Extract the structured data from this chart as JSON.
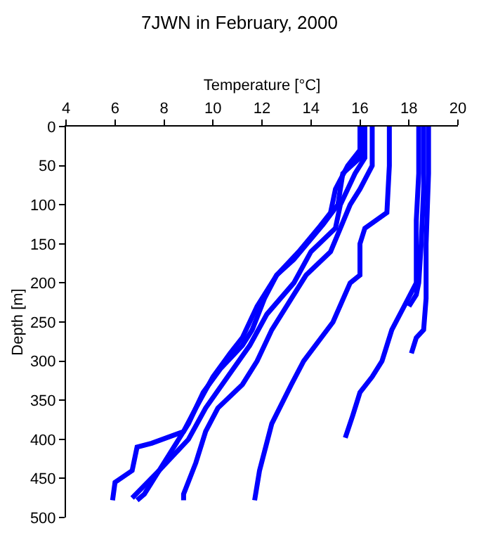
{
  "chart_data": {
    "type": "line",
    "title": "7JWN in February, 2000",
    "xlabel": "Temperature [°C]",
    "ylabel": "Depth [m]",
    "xlim": [
      4,
      20
    ],
    "xticks": [
      4,
      6,
      8,
      10,
      12,
      14,
      16,
      18,
      20
    ],
    "ylim": [
      500,
      0
    ],
    "yticks": [
      0,
      50,
      100,
      150,
      200,
      250,
      300,
      350,
      400,
      450,
      500
    ],
    "marker": "none",
    "line_style": "solid",
    "series": [
      {
        "color": "#0000ff",
        "x": [
          16.0,
          16.0,
          15.5,
          15.0,
          14.8,
          14.3,
          13.5,
          12.6,
          11.8,
          11.2,
          10.7,
          10.0,
          9.3,
          8.8,
          7.5,
          6.9,
          6.7,
          6.0,
          5.9
        ],
        "values": [
          0,
          30,
          50,
          80,
          110,
          130,
          160,
          190,
          230,
          270,
          290,
          320,
          360,
          390,
          405,
          410,
          440,
          455,
          478
        ]
      },
      {
        "color": "#0000ff",
        "x": [
          16.1,
          16.0,
          15.3,
          15.1,
          14.5,
          13.3,
          12.6,
          12.1,
          11.6,
          11.2,
          10.3,
          9.6,
          9.0,
          8.2,
          7.6,
          7.2,
          6.9
        ],
        "values": [
          0,
          40,
          60,
          100,
          125,
          170,
          190,
          220,
          260,
          280,
          310,
          340,
          380,
          420,
          450,
          470,
          478
        ]
      },
      {
        "color": "#0000ff",
        "x": [
          16.2,
          16.2,
          15.8,
          15.2,
          15.0,
          14.0,
          13.3,
          12.2,
          11.5,
          10.6,
          9.7,
          9.0,
          7.8,
          6.7
        ],
        "values": [
          0,
          40,
          60,
          100,
          130,
          160,
          200,
          240,
          280,
          320,
          360,
          400,
          440,
          475
        ]
      },
      {
        "color": "#0000ff",
        "x": [
          16.5,
          16.5,
          16.0,
          15.6,
          15.2,
          14.8,
          13.8,
          13.2,
          12.4,
          11.8,
          11.2,
          10.2,
          9.7,
          9.3,
          8.8,
          8.8
        ],
        "values": [
          0,
          50,
          80,
          100,
          130,
          160,
          190,
          220,
          260,
          300,
          330,
          360,
          390,
          430,
          470,
          478
        ]
      },
      {
        "color": "#0000ff",
        "x": [
          17.2,
          17.2,
          17.1,
          16.2,
          16.0,
          16.0,
          15.6,
          14.9,
          13.7,
          13.2,
          12.4,
          11.9,
          11.7
        ],
        "values": [
          0,
          50,
          110,
          130,
          150,
          190,
          200,
          250,
          300,
          330,
          380,
          440,
          478
        ]
      },
      {
        "color": "#0000ff",
        "x": [
          18.4,
          18.4,
          18.3,
          18.3,
          17.8,
          17.3,
          16.9,
          16.5,
          16.0,
          15.7,
          15.4
        ],
        "values": [
          0,
          60,
          120,
          200,
          230,
          260,
          300,
          320,
          340,
          370,
          398
        ]
      },
      {
        "color": "#0000ff",
        "x": [
          18.8,
          18.8,
          18.7,
          18.7,
          18.6,
          18.3,
          18.2,
          18.1
        ],
        "values": [
          0,
          60,
          150,
          220,
          260,
          270,
          280,
          290
        ]
      },
      {
        "color": "#0000ff",
        "x": [
          18.6,
          18.6,
          18.5,
          18.4,
          18.3,
          18.0
        ],
        "values": [
          0,
          80,
          150,
          200,
          215,
          230
        ]
      }
    ]
  }
}
